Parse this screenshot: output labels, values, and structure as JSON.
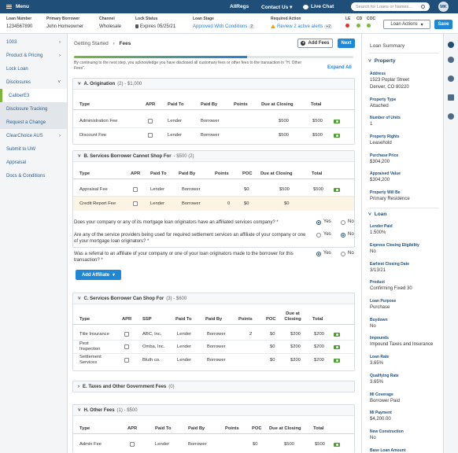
{
  "topbar": {
    "menu_label": "Menu",
    "brand": "AllRegs",
    "contact_label": "Contact Us",
    "chat_label": "Live Chat",
    "search_placeholder": "Search for Loans or Names...",
    "avatar_initials": "MK"
  },
  "loanbar": {
    "loan_number_label": "Loan Number",
    "loan_number": "1234567890",
    "borrower_label": "Primary Borrower",
    "borrower": "John Homeowner",
    "channel_label": "Channel",
    "channel": "Wholesale",
    "lock_label": "Lock Status",
    "lock": "Expires 05/25/21",
    "stage_label": "Loan Stage",
    "stage": "Approved With Conditions",
    "stage_count": "2",
    "action_label": "Required Action",
    "action": "Review 2 active alerts",
    "action_count": "+2",
    "flags": [
      "LE",
      "CD",
      "COC"
    ],
    "loan_actions": "Loan Actions",
    "save": "Save"
  },
  "sidebar": {
    "items": [
      {
        "label": "1003",
        "chev": "›"
      },
      {
        "label": "Product & Pricing",
        "chev": "›"
      },
      {
        "label": "Lock Loan",
        "chev": ""
      },
      {
        "label": "Disclosures",
        "chev": "˅"
      },
      {
        "label": "CaliberE3",
        "chev": ""
      },
      {
        "label": "Disclosure Tracking",
        "chev": ""
      },
      {
        "label": "Request a Change",
        "chev": ""
      },
      {
        "label": "ClearChoice AUS",
        "chev": "›"
      },
      {
        "label": "Submit to UW",
        "chev": ""
      },
      {
        "label": "Appraisal",
        "chev": ""
      },
      {
        "label": "Docs & Conditions",
        "chev": ""
      }
    ]
  },
  "main": {
    "crumb_parent": "Getting Started",
    "crumb_sep": "›",
    "crumb_current": "Fees",
    "add_fees": "Add Fees",
    "next": "Next",
    "progress": 0.62,
    "disclaimer": "By continuing to the next step, you acknowledge you have disclosed all customary fees or other fees to the transaction in \"H. Other Fees\".",
    "expand_all": "Expand All",
    "secA": {
      "title": "A. Origination",
      "sub": "(2) - $1,000",
      "headers": [
        "Type",
        "APR",
        "Paid To",
        "Paid By",
        "Points",
        "Due at Closing",
        "Total"
      ],
      "rows": [
        [
          "Administration Fee",
          "Lender",
          "Borrower",
          "$500",
          "$500"
        ],
        [
          "Discount Fee",
          "Lender",
          "Borrower",
          "$500",
          "$500"
        ]
      ]
    },
    "secB": {
      "title": "B. Services Borrower Cannot Shop For",
      "sub": "- $500 (2)",
      "headers": [
        "Type",
        "APR",
        "Paid To",
        "Paid By",
        "Points",
        "POC",
        "Due at Closing",
        "Total"
      ],
      "rows": [
        [
          "Appraisal Fee",
          "Lender",
          "Borrower",
          "",
          "$0",
          "$500",
          "$500"
        ],
        [
          "Credit Report Fee",
          "Lender",
          "Borrower",
          "0",
          "$0",
          "$0",
          ""
        ]
      ]
    },
    "questions": [
      {
        "text": "Does your company or any of its mortgage loan originators have an affiliated services company? *",
        "yes": "Yes",
        "no": "No",
        "selected": "yes"
      },
      {
        "text": "Are any of the service providers being used for required settlement services an affiliate of your company or one of your mortgage loan originators? *",
        "yes": "Yes",
        "no": "No",
        "selected": "no"
      },
      {
        "text": "Was a referral to an affiliate of your company or one of your loan originators made to the borrower for this transaction? *",
        "yes": "Yes",
        "no": "No",
        "selected": "yes"
      }
    ],
    "add_affiliate": "Add Affiliate",
    "secC": {
      "title": "C. Services Borrower Can Shop For",
      "sub": "(3) - $600",
      "headers": [
        "Type",
        "APR",
        "SSP",
        "Paid To",
        "Paid By",
        "Points",
        "POC",
        "Due at Closing",
        "Total"
      ],
      "rows": [
        [
          "Title Insurance",
          "ABC, Inc.",
          "Lender",
          "Borrower",
          "2",
          "$0",
          "$200",
          "$200"
        ],
        [
          "Pest Inspection",
          "Omba, Inc.",
          "Lender",
          "Borrower",
          "",
          "$0",
          "$200",
          "$200"
        ],
        [
          "Settlement Services",
          "Bluth co.",
          "Lender",
          "Borrower",
          "",
          "$0",
          "$200",
          "$200"
        ]
      ]
    },
    "secE": {
      "title": "E. Taxes and Other Government Fees",
      "sub": "(0)"
    },
    "secH": {
      "title": "H. Other Fees",
      "sub": "(1) - $500",
      "headers": [
        "Type",
        "APR",
        "Paid To",
        "Paid By",
        "Points",
        "POC",
        "Due at Closing",
        "Total"
      ],
      "rows": [
        [
          "Admin Fee",
          "Lender",
          "Borrower",
          "",
          "$0",
          "$500",
          "$500"
        ]
      ]
    }
  },
  "summary": {
    "title": "Loan Summary",
    "property_label": "Property",
    "fields_property": [
      {
        "k": "Address",
        "v": "1523 Poplar Street",
        "v2": "Denver, CO 80220"
      },
      {
        "k": "Property Type",
        "v": "Attached"
      },
      {
        "k": "Number of Units",
        "v": "1"
      },
      {
        "k": "Property Rights",
        "v": "Leasehold"
      },
      {
        "k": "Purchase Price",
        "v": "$304,200"
      },
      {
        "k": "Appraised Value",
        "v": "$304,200"
      },
      {
        "k": "Property Will Be",
        "v": "Primary Residence"
      }
    ],
    "loan_label": "Loan",
    "fields_loan": [
      {
        "k": "Lender Paid",
        "v": "1.500%"
      },
      {
        "k": "Express Closing Eligibility",
        "v": "No"
      },
      {
        "k": "Earliest Closing Date",
        "v": "3/13/21"
      },
      {
        "k": "Product",
        "v": "Confirming Fixed 30"
      },
      {
        "k": "Loan Purpose",
        "v": "Purchase"
      },
      {
        "k": "Buydown",
        "v": "No"
      },
      {
        "k": "Impounds",
        "v": "Impound Taxes and Insurance"
      },
      {
        "k": "Loan Rate",
        "v": "3.65%"
      },
      {
        "k": "Qualifying Rate",
        "v": "3.65%"
      },
      {
        "k": "MI Coverage",
        "v": "Borrower Paid"
      },
      {
        "k": "MI Payment",
        "v": "$4,200.00"
      },
      {
        "k": "New Construction",
        "v": "No"
      },
      {
        "k": "Base Loan Amount",
        "v": ""
      }
    ]
  },
  "colors": {
    "nav": "#1f4e79",
    "accent": "#1e88d6",
    "success": "#7bb83a",
    "alert": "#e0302b"
  }
}
